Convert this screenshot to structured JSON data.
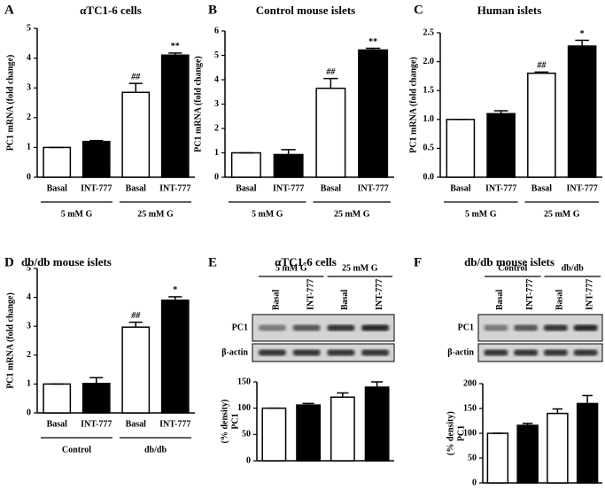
{
  "chart_data": [
    {
      "type": "bar",
      "panel": "A",
      "title": "αTC1-6 cells",
      "ylabel": [
        "PC1 mRNA  (fold change)"
      ],
      "categories": [
        "Basal",
        "INT-777",
        "Basal",
        "INT-777"
      ],
      "groups": [
        "5 mM G",
        "25 mM G"
      ],
      "values": [
        1,
        1.2,
        2.85,
        4.1
      ],
      "errors": [
        0,
        0.03,
        0.3,
        0.07
      ],
      "colors": [
        "#ffffff",
        "#000000",
        "#ffffff",
        "#000000"
      ],
      "value_annotations": [
        null,
        null,
        "##",
        "**"
      ],
      "ylim": [
        0,
        5
      ],
      "yticks": [
        0,
        1,
        2,
        3,
        4,
        5
      ]
    },
    {
      "type": "bar",
      "panel": "B",
      "title": "Control mouse islets",
      "ylabel": [
        "PC1 mRNA  (fold change)"
      ],
      "categories": [
        "Basal",
        "INT-777",
        "Basal",
        "INT-777"
      ],
      "groups": [
        "5 mM G",
        "25 mM G"
      ],
      "values": [
        1,
        0.93,
        3.65,
        5.22
      ],
      "errors": [
        0,
        0.2,
        0.4,
        0.07
      ],
      "colors": [
        "#ffffff",
        "#000000",
        "#ffffff",
        "#000000"
      ],
      "value_annotations": [
        null,
        null,
        "##",
        "**"
      ],
      "ylim": [
        0,
        6
      ],
      "yticks": [
        0,
        1,
        2,
        3,
        4,
        5,
        6
      ]
    },
    {
      "type": "bar",
      "panel": "C",
      "title": "Human islets",
      "ylabel": [
        "PC1 mRNA  (fold change)"
      ],
      "categories": [
        "Basal",
        "INT-777",
        "Basal",
        "INT-777"
      ],
      "groups": [
        "5 mM G",
        "25 mM G"
      ],
      "values": [
        1,
        1.1,
        1.8,
        2.27
      ],
      "errors": [
        0,
        0.05,
        0.02,
        0.1
      ],
      "colors": [
        "#ffffff",
        "#000000",
        "#ffffff",
        "#000000"
      ],
      "value_annotations": [
        null,
        null,
        "##",
        "*"
      ],
      "ylim": [
        0,
        2.5
      ],
      "yticks": [
        {
          "value": 0,
          "label": "0.0"
        },
        0.5,
        {
          "value": 1,
          "label": "1.0"
        },
        1.5,
        {
          "value": 2,
          "label": "2.0"
        },
        2.5
      ]
    },
    {
      "type": "bar",
      "panel": "D",
      "title": "db/db mouse islets",
      "ylabel": [
        "PC1 mRNA  (fold change)"
      ],
      "categories": [
        "Basal",
        "INT-777",
        "Basal",
        "INT-777"
      ],
      "groups": [
        "Control",
        "db/db"
      ],
      "values": [
        1,
        1.02,
        2.97,
        3.9
      ],
      "errors": [
        0,
        0.2,
        0.17,
        0.12
      ],
      "colors": [
        "#ffffff",
        "#000000",
        "#ffffff",
        "#000000"
      ],
      "value_annotations": [
        null,
        null,
        "##",
        "*"
      ],
      "ylim": [
        0,
        5
      ],
      "yticks": [
        0,
        1,
        2,
        3,
        4,
        5
      ]
    },
    {
      "type": "bar",
      "panel": "E",
      "title": "αTC1-6 cells",
      "ylabel": [
        "PC1",
        "(% density)"
      ],
      "categories": [
        "Basal",
        "INT-777",
        "Basal",
        "INT-777"
      ],
      "groups": [
        "5 mM G",
        "25 mM G"
      ],
      "blot_rows": [
        "PC1",
        "β-actin"
      ],
      "values": [
        100,
        106,
        121,
        140
      ],
      "errors": [
        0,
        3,
        8,
        10
      ],
      "colors": [
        "#ffffff",
        "#000000",
        "#ffffff",
        "#000000"
      ],
      "ylim": [
        0,
        150
      ],
      "yticks": [
        0,
        50,
        100,
        150
      ]
    },
    {
      "type": "bar",
      "panel": "F",
      "title": "db/db mouse islets",
      "ylabel": [
        "PC1",
        "(% density)"
      ],
      "categories": [
        "Basal",
        "INT-777",
        "Basal",
        "INT-777"
      ],
      "groups": [
        "Control",
        "db/db"
      ],
      "blot_rows": [
        "PC1",
        "β-actin"
      ],
      "values": [
        100,
        116,
        140,
        160
      ],
      "errors": [
        0,
        4,
        9,
        16
      ],
      "colors": [
        "#ffffff",
        "#000000",
        "#ffffff",
        "#000000"
      ],
      "ylim": [
        0,
        200
      ],
      "yticks": [
        0,
        50,
        100,
        150,
        200
      ]
    }
  ]
}
